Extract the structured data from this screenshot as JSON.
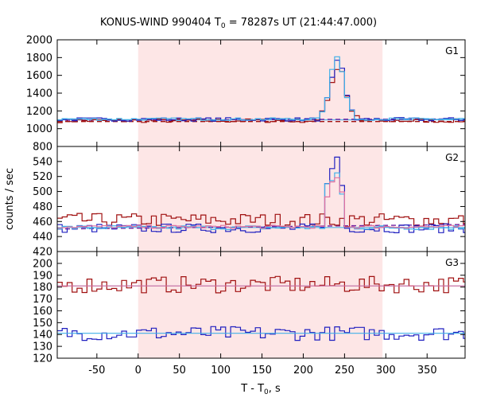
{
  "chart_data": {
    "type": "line",
    "title": "KONUS-WIND 990404 T",
    "title_subscript": "0",
    "title_rest": " = 78287s UT (21:44:47.000)",
    "xlabel": "T - T",
    "xlabel_subscript": "0",
    "xlabel_rest": ", s",
    "ylabel": "counts / sec",
    "xlim": [
      -98,
      396
    ],
    "x_ticks": [
      -50,
      0,
      50,
      100,
      150,
      200,
      250,
      300,
      350
    ],
    "x_tick_labels": [
      "-50",
      "0",
      "50",
      "100",
      "150",
      "200",
      "250",
      "300",
      "350"
    ],
    "shaded_interval": [
      0,
      296
    ],
    "grid": false,
    "colors": {
      "red": "#a01010",
      "blue": "#2020c0",
      "cyan": "#40b0e8",
      "pink": "#e070a0",
      "purple": "#7020a0",
      "shade": "#fde6e6"
    },
    "panels": [
      {
        "label": "G1",
        "ylim": [
          800,
          2000
        ],
        "y_ticks": [
          800,
          1000,
          1200,
          1400,
          1600,
          1800,
          2000
        ],
        "y_tick_labels": [
          "800",
          "1000",
          "1200",
          "1400",
          "1600",
          "1800",
          "2000"
        ],
        "background_level": 1100,
        "dashed_levels": [
          {
            "color": "purple",
            "start": 1095,
            "end": 1110
          },
          {
            "color": "red",
            "start": 1080,
            "end": 1080
          }
        ],
        "series": [
          {
            "color": "red",
            "base": 1090,
            "amp": 22,
            "peak": [
              [
                220,
                1140
              ],
              [
                230,
                1340
              ],
              [
                236,
                1560
              ],
              [
                240,
                1660
              ],
              [
                244,
                1700
              ],
              [
                248,
                1620
              ],
              [
                252,
                1400
              ],
              [
                256,
                1230
              ],
              [
                262,
                1150
              ],
              [
                270,
                1130
              ]
            ]
          },
          {
            "color": "blue",
            "base": 1105,
            "amp": 20,
            "peak": [
              [
                220,
                1150
              ],
              [
                226,
                1220
              ],
              [
                232,
                1460
              ],
              [
                236,
                1620
              ],
              [
                240,
                1760
              ],
              [
                244,
                1780
              ],
              [
                248,
                1650
              ],
              [
                252,
                1420
              ],
              [
                256,
                1250
              ],
              [
                262,
                1170
              ]
            ]
          },
          {
            "color": "cyan",
            "base": 1108,
            "amp": 14,
            "peak": [
              [
                222,
                1160
              ],
              [
                228,
                1300
              ],
              [
                234,
                1620
              ],
              [
                238,
                1800
              ],
              [
                242,
                1820
              ],
              [
                246,
                1700
              ],
              [
                250,
                1460
              ],
              [
                256,
                1240
              ],
              [
                264,
                1170
              ]
            ]
          }
        ]
      },
      {
        "label": "G2",
        "ylim": [
          420,
          560
        ],
        "y_ticks": [
          420,
          440,
          460,
          480,
          500,
          520,
          540
        ],
        "y_tick_labels": [
          "420",
          "440",
          "460",
          "480",
          "500",
          "520",
          "540"
        ],
        "background_level": 452,
        "dashed_levels": [
          {
            "color": "purple",
            "start": 450,
            "end": 456
          }
        ],
        "series": [
          {
            "color": "red",
            "base": 462,
            "amp": 9,
            "peak": []
          },
          {
            "color": "blue",
            "base": 451,
            "amp": 6,
            "peak": [
              [
                224,
                470
              ],
              [
                228,
                510
              ],
              [
                234,
                525
              ],
              [
                240,
                550
              ],
              [
                244,
                535
              ],
              [
                248,
                500
              ],
              [
                252,
                472
              ]
            ]
          },
          {
            "color": "cyan",
            "base": 452,
            "amp": 3,
            "peak": [
              [
                226,
                480
              ],
              [
                230,
                520
              ],
              [
                236,
                512
              ],
              [
                242,
                528
              ],
              [
                248,
                490
              ],
              [
                252,
                468
              ]
            ]
          },
          {
            "color": "pink",
            "base": 453,
            "amp": 2,
            "peak": [
              [
                228,
                490
              ],
              [
                236,
                515
              ],
              [
                244,
                520
              ],
              [
                250,
                480
              ]
            ]
          }
        ]
      },
      {
        "label": "G3",
        "ylim": [
          120,
          210
        ],
        "y_ticks": [
          120,
          130,
          140,
          150,
          160,
          170,
          180,
          190,
          200
        ],
        "y_tick_labels": [
          "120",
          "130",
          "140",
          "150",
          "160",
          "170",
          "180",
          "190",
          "200"
        ],
        "background_level": 181,
        "dashed_levels": [],
        "series": [
          {
            "color": "red",
            "base": 182,
            "amp": 7,
            "peak": []
          },
          {
            "color": "blue",
            "base": 141,
            "amp": 6,
            "peak": []
          },
          {
            "color": "pink",
            "base": 181,
            "amp": 0,
            "peak": []
          },
          {
            "color": "cyan",
            "base": 141,
            "amp": 0,
            "peak": []
          }
        ]
      }
    ]
  }
}
